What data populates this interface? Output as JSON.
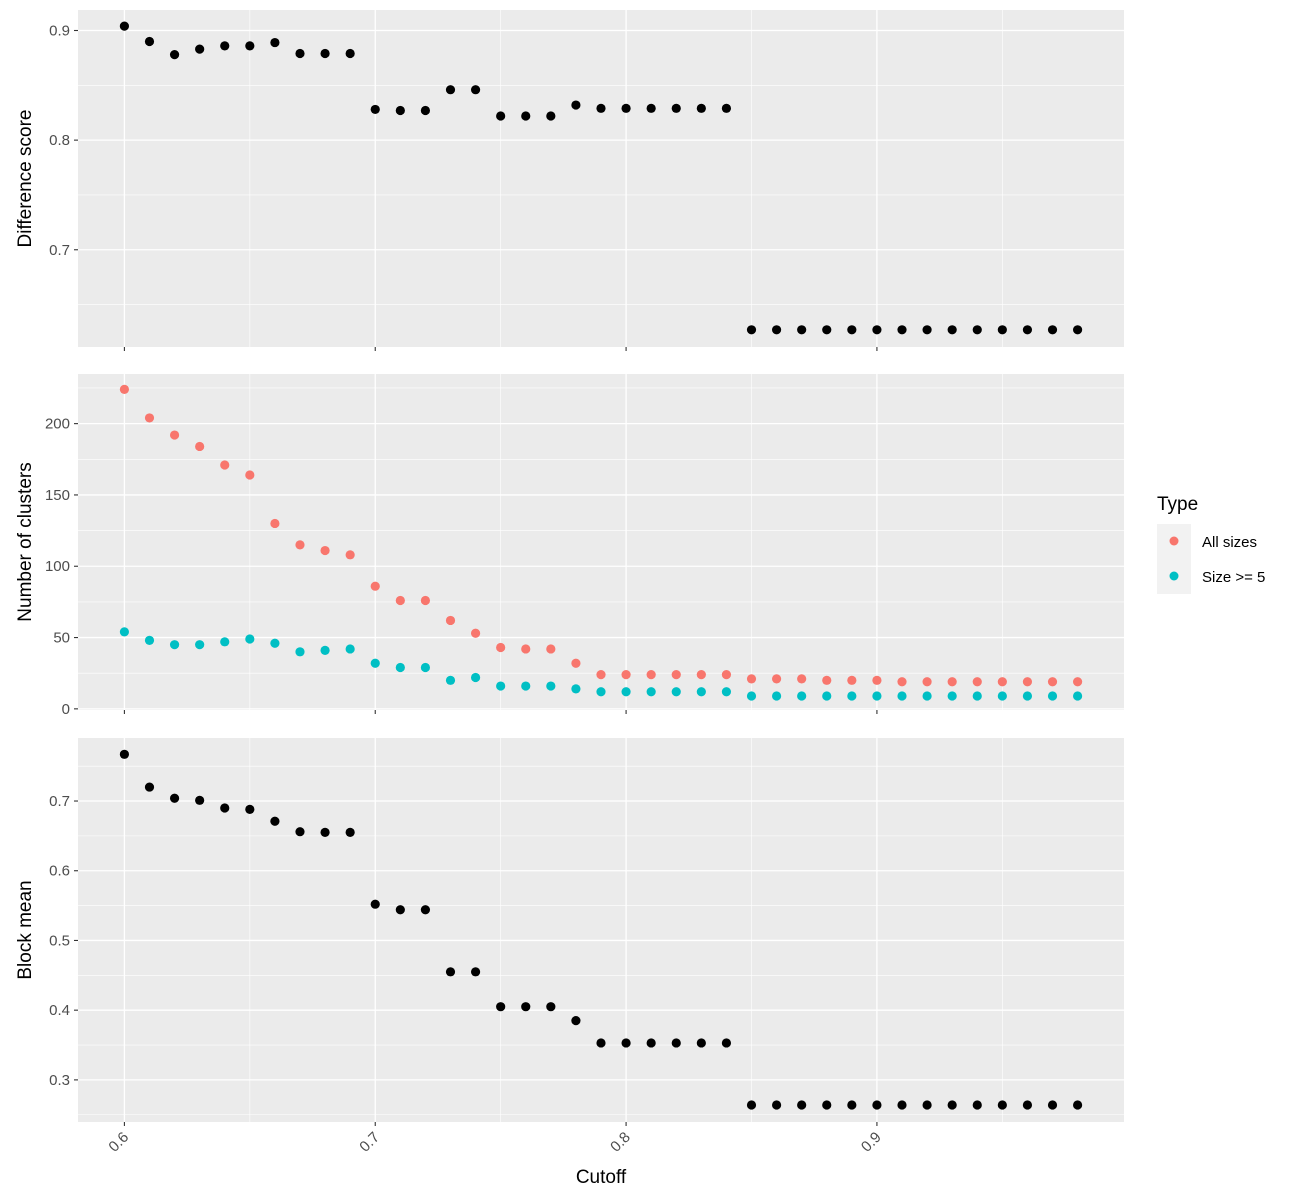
{
  "chart_data": {
    "type": "scatter",
    "xlabel": "Cutoff",
    "x_ticks": [
      0.6,
      0.7,
      0.8,
      0.9
    ],
    "x_tick_labels": [
      "0.6",
      "0.7",
      "0.8",
      "0.9"
    ],
    "xlim": [
      0.5815,
      0.9985
    ],
    "x": [
      0.6,
      0.61,
      0.62,
      0.63,
      0.64,
      0.65,
      0.66,
      0.67,
      0.68,
      0.69,
      0.7,
      0.71,
      0.72,
      0.73,
      0.74,
      0.75,
      0.76,
      0.77,
      0.78,
      0.79,
      0.8,
      0.81,
      0.82,
      0.83,
      0.84,
      0.85,
      0.86,
      0.87,
      0.88,
      0.89,
      0.9,
      0.91,
      0.92,
      0.93,
      0.94,
      0.95,
      0.96,
      0.97,
      0.98
    ],
    "panels": [
      {
        "ylabel": "Difference score",
        "y_ticks": [
          0.7,
          0.8,
          0.9
        ],
        "y_tick_labels": [
          "0.7",
          "0.8",
          "0.9"
        ],
        "ylim": [
          0.6113,
          0.9187
        ],
        "series": [
          {
            "color": "#000000",
            "values": [
              0.904,
              0.89,
              0.878,
              0.883,
              0.886,
              0.886,
              0.889,
              0.879,
              0.879,
              0.879,
              0.828,
              0.827,
              0.827,
              0.846,
              0.846,
              0.822,
              0.822,
              0.822,
              0.832,
              0.829,
              0.829,
              0.829,
              0.829,
              0.829,
              0.829,
              0.627,
              0.627,
              0.627,
              0.627,
              0.627,
              0.627,
              0.627,
              0.627,
              0.627,
              0.627,
              0.627,
              0.627,
              0.627,
              0.627
            ]
          }
        ]
      },
      {
        "ylabel": "Number of clusters",
        "y_ticks": [
          0,
          50,
          100,
          150,
          200
        ],
        "y_tick_labels": [
          "0",
          "50",
          "100",
          "150",
          "200"
        ],
        "ylim": [
          -0.8,
          234.8
        ],
        "series": [
          {
            "name": "All sizes",
            "color": "#F8766D",
            "values": [
              224,
              204,
              192,
              184,
              171,
              164,
              130,
              115,
              111,
              108,
              86,
              76,
              76,
              62,
              53,
              43,
              42,
              42,
              32,
              24,
              24,
              24,
              24,
              24,
              24,
              21,
              21,
              21,
              20,
              20,
              20,
              19,
              19,
              19,
              19,
              19,
              19,
              19,
              19
            ]
          },
          {
            "name": "Size >= 5",
            "color": "#00BFC4",
            "values": [
              54,
              48,
              45,
              45,
              47,
              49,
              46,
              40,
              41,
              42,
              32,
              29,
              29,
              20,
              22,
              16,
              16,
              16,
              14,
              12,
              12,
              12,
              12,
              12,
              12,
              9,
              9,
              9,
              9,
              9,
              9,
              9,
              9,
              9,
              9,
              9,
              9,
              9,
              9
            ]
          }
        ]
      },
      {
        "ylabel": "Block mean",
        "y_ticks": [
          0.3,
          0.4,
          0.5,
          0.6,
          0.7
        ],
        "y_tick_labels": [
          "0.3",
          "0.4",
          "0.5",
          "0.6",
          "0.7"
        ],
        "ylim": [
          0.2396,
          0.7904
        ],
        "series": [
          {
            "color": "#000000",
            "values": [
              0.767,
              0.72,
              0.704,
              0.701,
              0.69,
              0.688,
              0.671,
              0.656,
              0.655,
              0.655,
              0.552,
              0.544,
              0.544,
              0.455,
              0.455,
              0.405,
              0.405,
              0.405,
              0.385,
              0.353,
              0.353,
              0.353,
              0.353,
              0.353,
              0.353,
              0.264,
              0.264,
              0.264,
              0.264,
              0.264,
              0.264,
              0.264,
              0.264,
              0.264,
              0.264,
              0.264,
              0.264,
              0.264,
              0.264
            ]
          }
        ]
      }
    ],
    "legend": {
      "title": "Type",
      "position": "right",
      "entries": [
        {
          "label": "All sizes",
          "color": "#F8766D"
        },
        {
          "label": "Size >= 5",
          "color": "#00BFC4"
        }
      ]
    },
    "panel_background": "#EBEBEB",
    "grid_color": "#FFFFFF",
    "grid": true
  }
}
